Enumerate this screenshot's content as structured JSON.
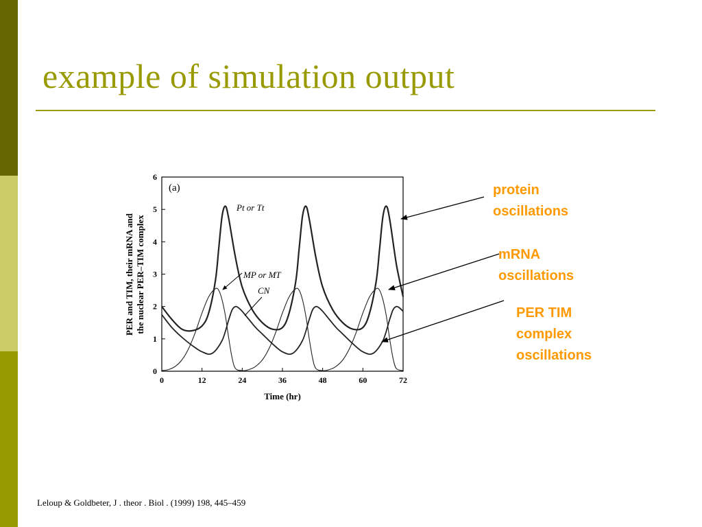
{
  "slide": {
    "title": "example of simulation output",
    "citation": "Leloup & Goldbeter, J . theor . Biol . (1999) 198, 445–459",
    "accent_color": "#999900",
    "callout_color": "#ff9900"
  },
  "callouts": [
    {
      "lines": [
        "protein",
        "oscillations"
      ]
    },
    {
      "lines": [
        "mRNA",
        "oscillations"
      ]
    },
    {
      "lines": [
        "PER TIM",
        "complex",
        "oscillations"
      ]
    }
  ],
  "chart_data": {
    "type": "line",
    "panel_label": "(a)",
    "xlabel": "Time (hr)",
    "ylabel_lines": [
      "PER and TIM, their mRNA and",
      "the nuclear PER–TIM complex"
    ],
    "xlim": [
      0,
      72
    ],
    "ylim": [
      0,
      6
    ],
    "x_ticks": [
      0,
      12,
      24,
      36,
      48,
      60,
      72
    ],
    "y_ticks": [
      0,
      1,
      2,
      3,
      4,
      5,
      6
    ],
    "annotations": {
      "protein": "Pt or Tt",
      "mrna": "MP or MT",
      "complex": "CN"
    },
    "series": [
      {
        "key": "protein",
        "x": [
          0,
          3,
          6,
          9,
          12,
          14,
          16,
          17,
          18,
          19,
          20,
          22,
          24,
          27,
          30,
          33,
          36,
          38,
          40,
          41,
          42,
          43,
          44,
          46,
          48,
          51,
          54,
          57,
          60,
          62,
          64,
          65,
          66,
          67,
          68,
          70,
          72
        ],
        "y": [
          2.0,
          1.6,
          1.3,
          1.25,
          1.4,
          1.8,
          2.8,
          3.8,
          4.8,
          5.1,
          4.7,
          3.5,
          2.6,
          1.9,
          1.5,
          1.3,
          1.35,
          1.8,
          2.8,
          3.8,
          4.8,
          5.1,
          4.7,
          3.5,
          2.6,
          1.9,
          1.5,
          1.3,
          1.35,
          1.8,
          2.8,
          3.8,
          4.8,
          5.1,
          4.7,
          3.3,
          2.3
        ]
      },
      {
        "key": "mrna",
        "x": [
          0,
          2,
          4,
          6,
          8,
          10,
          12,
          14,
          16,
          17,
          18,
          19,
          20,
          21,
          22,
          24,
          26,
          28,
          30,
          32,
          34,
          36,
          38,
          40,
          41,
          42,
          43,
          44,
          45,
          46,
          48,
          50,
          52,
          54,
          56,
          58,
          60,
          62,
          64,
          65,
          66,
          67,
          68,
          69,
          70,
          72
        ],
        "y": [
          0.02,
          0.05,
          0.15,
          0.35,
          0.7,
          1.2,
          1.8,
          2.3,
          2.55,
          2.5,
          2.2,
          1.7,
          1.0,
          0.4,
          0.08,
          0.02,
          0.05,
          0.15,
          0.35,
          0.7,
          1.2,
          1.8,
          2.3,
          2.55,
          2.5,
          2.2,
          1.7,
          1.0,
          0.4,
          0.08,
          0.02,
          0.05,
          0.15,
          0.35,
          0.7,
          1.2,
          1.8,
          2.3,
          2.55,
          2.5,
          2.2,
          1.7,
          1.0,
          0.4,
          0.08,
          0.02
        ]
      },
      {
        "key": "complex",
        "x": [
          0,
          3,
          6,
          9,
          12,
          15,
          18,
          20,
          21,
          22,
          23,
          24,
          26,
          28,
          30,
          33,
          36,
          39,
          42,
          44,
          45,
          46,
          47,
          48,
          50,
          52,
          54,
          57,
          60,
          63,
          66,
          68,
          69,
          70,
          71,
          72
        ],
        "y": [
          1.75,
          1.35,
          1.05,
          0.8,
          0.6,
          0.55,
          0.95,
          1.6,
          1.9,
          2.0,
          1.95,
          1.85,
          1.6,
          1.35,
          1.15,
          0.85,
          0.6,
          0.55,
          0.95,
          1.6,
          1.9,
          2.0,
          1.95,
          1.85,
          1.6,
          1.35,
          1.15,
          0.85,
          0.6,
          0.55,
          0.95,
          1.6,
          1.9,
          2.0,
          1.95,
          1.85
        ]
      }
    ]
  }
}
